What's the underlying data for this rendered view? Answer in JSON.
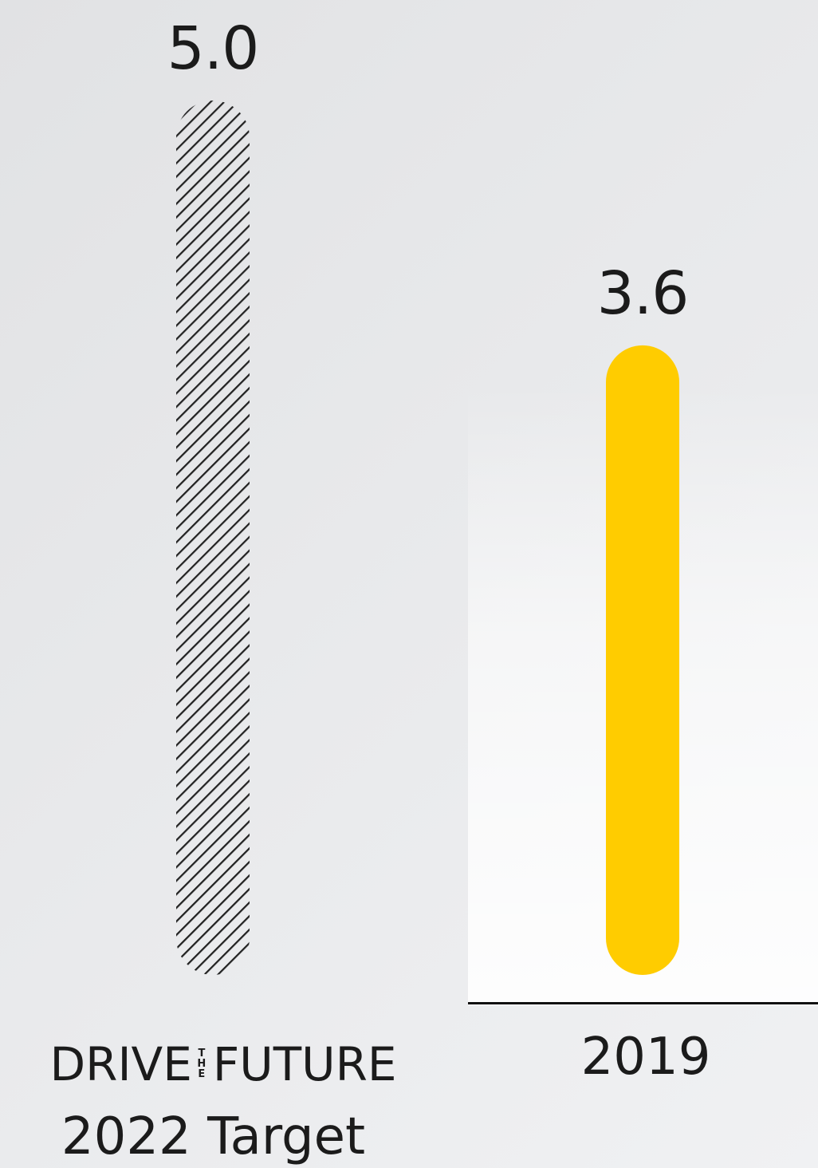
{
  "chart_data": {
    "type": "bar",
    "categories": [
      "DRIVE THE FUTURE 2022 Target",
      "2019"
    ],
    "values": [
      5.0,
      3.6
    ],
    "value_labels": [
      "5.0",
      "3.6"
    ],
    "ylim": [
      0,
      5.0
    ],
    "grid": false,
    "legend": "none"
  },
  "labels": {
    "brand_left": "DRIVE",
    "brand_the": "THE",
    "brand_right": "FUTURE",
    "target": "2022 Target",
    "year": "2019"
  },
  "colors": {
    "actual_bar": "#FFCC00",
    "target_hatch": "#222222",
    "axis": "#111111"
  },
  "styles": {
    "target_bar": "hatched",
    "actual_bar": "solid"
  }
}
